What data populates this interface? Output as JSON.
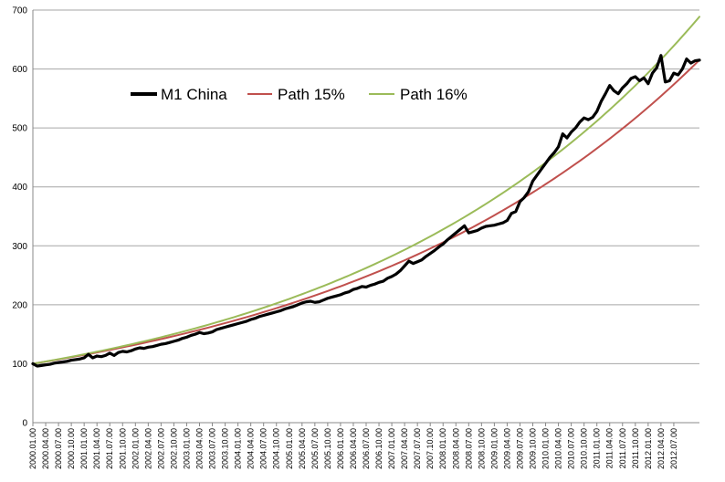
{
  "chart_data": {
    "type": "line",
    "title": "",
    "xlabel": "",
    "ylabel": "",
    "ylim": [
      0,
      700
    ],
    "y_ticks": [
      0,
      100,
      200,
      300,
      400,
      500,
      600,
      700
    ],
    "grid": "horizontal",
    "legend_position": "top-left inside plot",
    "x_tick_labels": [
      "2000.01.00",
      "2000.04.00",
      "2000.07.00",
      "2000.10.00",
      "2001.01.00",
      "2001.04.00",
      "2001.07.00",
      "2001.10.00",
      "2002.01.00",
      "2002.04.00",
      "2002.07.00",
      "2002.10.00",
      "2003.01.00",
      "2003.04.00",
      "2003.07.00",
      "2003.10.00",
      "2004.01.00",
      "2004.04.00",
      "2004.07.00",
      "2004.10.00",
      "2005.01.00",
      "2005.04.00",
      "2005.07.00",
      "2005.10.00",
      "2006.01.00",
      "2006.04.00",
      "2006.07.00",
      "2006.10.00",
      "2007.01.00",
      "2007.04.00",
      "2007.07.00",
      "2007.10.00",
      "2008.01.00",
      "2008.04.00",
      "2008.07.00",
      "2008.10.00",
      "2009.01.00",
      "2009.04.00",
      "2009.07.00",
      "2009.10.00",
      "2010.01.00",
      "2010.04.00",
      "2010.07.00",
      "2010.10.00",
      "2011.01.00",
      "2011.04.00",
      "2011.07.00",
      "2011.10.00",
      "2012.01.00",
      "2012.04.00",
      "2012.07.00"
    ],
    "series": [
      {
        "name": "M1 China",
        "color": "#000000",
        "width": 3.2,
        "x_months_start": "2000.01",
        "values": [
          100,
          96,
          97,
          98,
          99,
          101,
          102,
          103,
          104,
          106,
          107,
          108,
          110,
          116,
          110,
          113,
          112,
          114,
          118,
          114,
          119,
          121,
          120,
          122,
          125,
          127,
          126,
          128,
          129,
          131,
          133,
          134,
          136,
          138,
          140,
          143,
          145,
          148,
          150,
          153,
          151,
          152,
          154,
          158,
          160,
          162,
          164,
          166,
          168,
          170,
          172,
          175,
          177,
          180,
          182,
          184,
          186,
          188,
          190,
          193,
          195,
          197,
          200,
          203,
          205,
          206,
          204,
          205,
          208,
          211,
          213,
          215,
          217,
          220,
          222,
          226,
          228,
          231,
          230,
          233,
          235,
          238,
          240,
          245,
          248,
          252,
          258,
          266,
          274,
          270,
          273,
          276,
          282,
          287,
          292,
          298,
          303,
          310,
          316,
          322,
          328,
          334,
          322,
          324,
          326,
          330,
          333,
          334,
          335,
          337,
          339,
          343,
          355,
          358,
          375,
          382,
          392,
          410,
          420,
          430,
          440,
          450,
          458,
          468,
          490,
          483,
          493,
          500,
          510,
          517,
          514,
          518,
          528,
          545,
          558,
          572,
          563,
          558,
          568,
          575,
          584,
          587,
          580,
          585,
          575,
          593,
          602,
          623,
          578,
          580,
          593,
          590,
          600,
          617,
          610,
          614,
          615
        ]
      },
      {
        "name": "Path 15%",
        "color": "#c0504d",
        "width": 2,
        "annual_growth": 0.15,
        "start": 100
      },
      {
        "name": "Path 16%",
        "color": "#9bbb59",
        "width": 2,
        "annual_growth": 0.16,
        "start": 100
      }
    ]
  }
}
